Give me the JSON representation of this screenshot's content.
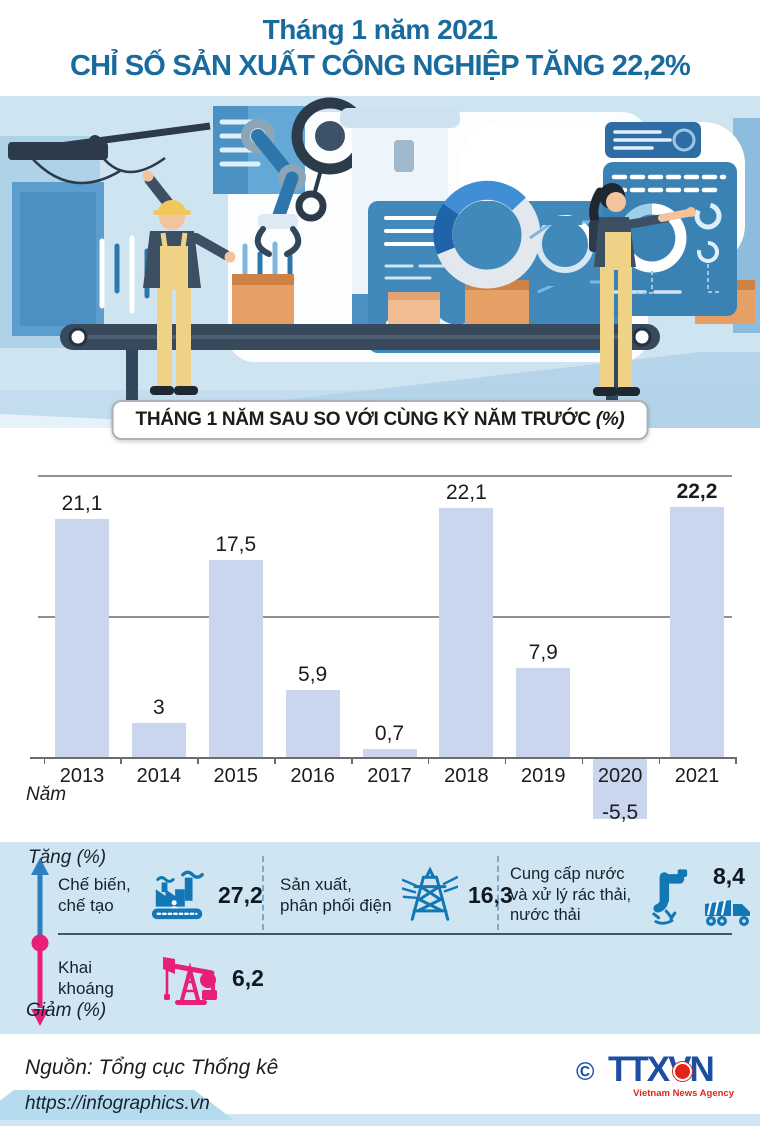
{
  "header": {
    "subtitle": "Tháng 1 năm 2021",
    "title": "CHỈ SỐ SẢN XUẤT CÔNG NGHIỆP TĂNG 22,2%"
  },
  "badge": {
    "text": "THÁNG 1 NĂM SAU SO VỚI CÙNG KỲ NĂM TRƯỚC",
    "unit": "(%)"
  },
  "chart_data": {
    "type": "bar",
    "title": "THÁNG 1 NĂM SAU SO VỚI CÙNG KỲ NĂM TRƯỚC (%)",
    "categories": [
      "2013",
      "2014",
      "2015",
      "2016",
      "2017",
      "2018",
      "2019",
      "2020",
      "2021"
    ],
    "values": [
      21.1,
      3,
      17.5,
      5.9,
      0.7,
      22.1,
      7.9,
      -5.5,
      22.2
    ],
    "labels": [
      "21,1",
      "3",
      "17,5",
      "5,9",
      "0,7",
      "22,1",
      "7,9",
      "-5,5",
      "22,2"
    ],
    "highlight_index": 8,
    "xlabel": "Năm",
    "ylabel": "",
    "ylim": [
      -7.5,
      25
    ],
    "gridlines": [
      0,
      12.5,
      25
    ],
    "grid": true,
    "legend": "none",
    "bar_color": "#c9d6ed"
  },
  "sectors": {
    "increase_label": "Tăng (%)",
    "decrease_label": "Giảm (%)",
    "increase": [
      {
        "label": "Chế biến, chế tạo",
        "value": "27,2",
        "icon": "factory-icon"
      },
      {
        "label": "Sản xuất, phân phối điện",
        "value": "16,3",
        "icon": "power-pylon-icon"
      },
      {
        "label": "Cung cấp nước và xử lý rác thải, nước thải",
        "value": "8,4",
        "icon": "water-faucet-truck-icon"
      }
    ],
    "decrease": [
      {
        "label": "Khai khoáng",
        "value": "6,2",
        "icon": "oil-pump-icon"
      }
    ]
  },
  "footer": {
    "source": "Nguồn: Tổng cục Thống kê",
    "website": "https://infographics.vn",
    "copyright": "©",
    "agency_logo": "TTXVN",
    "agency_name": "Vietnam News Agency"
  },
  "colors": {
    "title_blue": "#1a6b9d",
    "bar_fill": "#c9d6ed",
    "section_bg": "#cfe5f1",
    "icon_blue": "#1377b5",
    "accent_pink": "#e81f76",
    "agency_blue": "#1c4fa3",
    "agency_red": "#e1251b"
  }
}
